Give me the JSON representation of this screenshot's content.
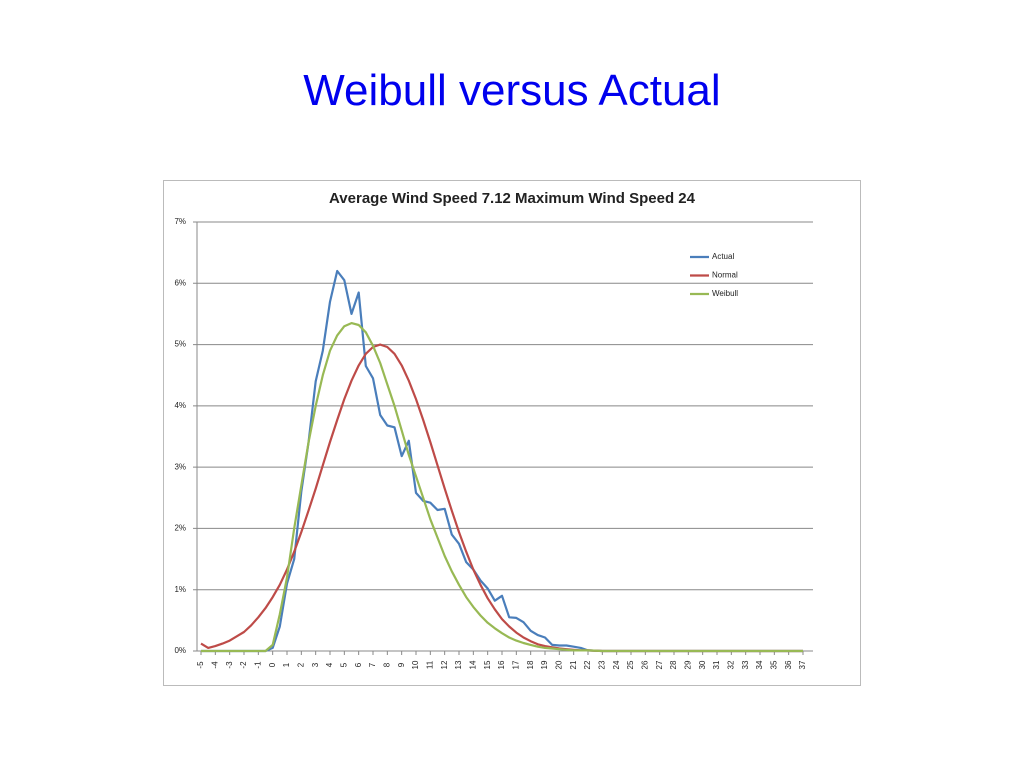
{
  "title": "Weibull versus Actual",
  "chart_data": {
    "type": "line",
    "title": "Average Wind Speed 7.12  Maximum Wind Speed 24",
    "x": [
      -5,
      -4.5,
      -4,
      -3.5,
      -3,
      -2.5,
      -2,
      -1.5,
      -1,
      -0.5,
      0,
      0.5,
      1,
      1.5,
      2,
      2.5,
      3,
      3.5,
      4,
      4.5,
      5,
      5.5,
      6,
      6.5,
      7,
      7.5,
      8,
      8.5,
      9,
      9.5,
      10,
      10.5,
      11,
      11.5,
      12,
      12.5,
      13,
      13.5,
      14,
      14.5,
      15,
      15.5,
      16,
      16.5,
      17,
      17.5,
      18,
      18.5,
      19,
      19.5,
      20,
      20.5,
      21,
      21.5,
      22,
      23,
      24,
      25,
      26,
      27,
      28,
      29,
      30,
      31,
      32,
      33,
      34,
      35,
      36,
      37
    ],
    "series": [
      {
        "name": "Actual",
        "color": "#4a7ebb",
        "values": [
          0,
          0,
          0,
          0,
          0,
          0,
          0,
          0,
          0,
          0,
          0.05,
          0.4,
          1.1,
          1.5,
          2.6,
          3.4,
          4.4,
          4.9,
          5.7,
          6.2,
          6.05,
          5.5,
          5.85,
          4.65,
          4.45,
          3.85,
          3.68,
          3.65,
          3.18,
          3.43,
          2.58,
          2.45,
          2.42,
          2.3,
          2.32,
          1.9,
          1.75,
          1.45,
          1.33,
          1.15,
          1.02,
          0.82,
          0.9,
          0.55,
          0.54,
          0.47,
          0.33,
          0.26,
          0.22,
          0.1,
          0.09,
          0.09,
          0.07,
          0.05,
          0.01,
          0,
          0,
          0,
          0,
          0,
          0,
          0,
          0,
          0,
          0,
          0,
          0,
          0,
          0,
          0
        ]
      },
      {
        "name": "Normal",
        "color": "#be4b48",
        "values": [
          0.12,
          0.05,
          0.08,
          0.12,
          0.17,
          0.24,
          0.31,
          0.42,
          0.55,
          0.7,
          0.88,
          1.08,
          1.33,
          1.62,
          1.94,
          2.29,
          2.65,
          3.03,
          3.41,
          3.77,
          4.11,
          4.41,
          4.66,
          4.85,
          4.96,
          5.0,
          4.96,
          4.85,
          4.66,
          4.41,
          4.11,
          3.77,
          3.41,
          3.03,
          2.65,
          2.29,
          1.94,
          1.62,
          1.33,
          1.08,
          0.86,
          0.68,
          0.52,
          0.4,
          0.3,
          0.22,
          0.16,
          0.11,
          0.08,
          0.06,
          0.04,
          0.03,
          0.02,
          0.01,
          0.01,
          0,
          0,
          0,
          0,
          0,
          0,
          0,
          0,
          0,
          0,
          0,
          0,
          0,
          0,
          0
        ]
      },
      {
        "name": "Weibull",
        "color": "#98b954",
        "values": [
          0,
          0,
          0,
          0,
          0,
          0,
          0,
          0,
          0,
          0,
          0.1,
          0.6,
          1.2,
          2.0,
          2.7,
          3.4,
          4.0,
          4.5,
          4.9,
          5.15,
          5.3,
          5.35,
          5.32,
          5.2,
          4.98,
          4.7,
          4.35,
          4.0,
          3.6,
          3.2,
          2.85,
          2.5,
          2.15,
          1.85,
          1.55,
          1.3,
          1.08,
          0.88,
          0.72,
          0.58,
          0.46,
          0.37,
          0.29,
          0.22,
          0.17,
          0.13,
          0.1,
          0.07,
          0.05,
          0.04,
          0.03,
          0.02,
          0.01,
          0.01,
          0.01,
          0,
          0,
          0,
          0,
          0,
          0,
          0,
          0,
          0,
          0,
          0,
          0,
          0,
          0,
          0
        ]
      }
    ],
    "xlim": [
      -5,
      37
    ],
    "xticks": [
      -5,
      -4,
      -3,
      -2,
      -1,
      0,
      1,
      2,
      3,
      4,
      5,
      6,
      7,
      8,
      9,
      10,
      11,
      12,
      13,
      14,
      15,
      16,
      17,
      18,
      19,
      20,
      21,
      22,
      23,
      24,
      25,
      26,
      27,
      28,
      29,
      30,
      31,
      32,
      33,
      34,
      35,
      36,
      37
    ],
    "ylim": [
      0,
      7
    ],
    "yticks": [
      {
        "value": 0,
        "label": "0%"
      },
      {
        "value": 1,
        "label": "1%"
      },
      {
        "value": 2,
        "label": "2%"
      },
      {
        "value": 3,
        "label": "3%"
      },
      {
        "value": 4,
        "label": "4%"
      },
      {
        "value": 5,
        "label": "5%"
      },
      {
        "value": 6,
        "label": "6%"
      },
      {
        "value": 7,
        "label": "7%"
      }
    ],
    "grid": true,
    "legend": "upper right"
  }
}
